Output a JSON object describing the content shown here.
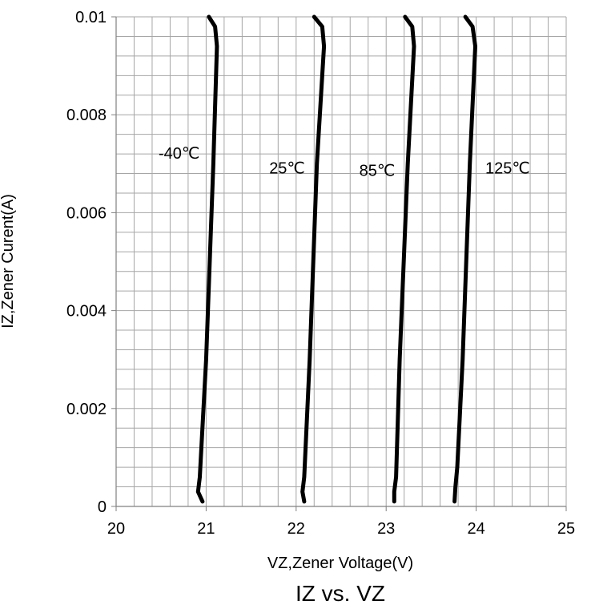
{
  "chart_data": {
    "type": "line",
    "title": "",
    "xlabel": "VZ,Zener Voltage(V)",
    "ylabel": "IZ,Zener Curent(A)",
    "caption": "IZ vs. VZ",
    "xlim": [
      20,
      25
    ],
    "ylim": [
      0,
      0.01
    ],
    "x_ticks": [
      "20",
      "21",
      "22",
      "23",
      "24",
      "25"
    ],
    "y_ticks": [
      "0",
      "0.002",
      "0.004",
      "0.006",
      "0.008",
      "0.01"
    ],
    "grid": true,
    "grid_minor_x_step": 0.2,
    "grid_minor_y_step": 0.0004,
    "series": [
      {
        "name": "-40℃",
        "points": [
          [
            20.96,
            0.0001
          ],
          [
            20.91,
            0.0003
          ],
          [
            20.93,
            0.0006
          ],
          [
            21.0,
            0.003
          ],
          [
            21.08,
            0.007
          ],
          [
            21.12,
            0.0094
          ],
          [
            21.1,
            0.0098
          ],
          [
            21.03,
            0.01
          ]
        ]
      },
      {
        "name": "25℃",
        "points": [
          [
            22.09,
            0.0001
          ],
          [
            22.07,
            0.0003
          ],
          [
            22.09,
            0.0006
          ],
          [
            22.15,
            0.003
          ],
          [
            22.23,
            0.007
          ],
          [
            22.31,
            0.0094
          ],
          [
            22.29,
            0.0098
          ],
          [
            22.2,
            0.01
          ]
        ]
      },
      {
        "name": "85℃",
        "points": [
          [
            23.09,
            0.0001
          ],
          [
            23.09,
            0.0003
          ],
          [
            23.11,
            0.0006
          ],
          [
            23.15,
            0.003
          ],
          [
            23.24,
            0.007
          ],
          [
            23.31,
            0.0094
          ],
          [
            23.29,
            0.0098
          ],
          [
            23.21,
            0.01
          ]
        ]
      },
      {
        "name": "125℃",
        "points": [
          [
            23.76,
            0.0001
          ],
          [
            23.77,
            0.0004
          ],
          [
            23.79,
            0.0008
          ],
          [
            23.85,
            0.003
          ],
          [
            23.93,
            0.007
          ],
          [
            23.99,
            0.0094
          ],
          [
            23.96,
            0.0098
          ],
          [
            23.88,
            0.01
          ]
        ]
      }
    ],
    "series_label_anchors": [
      {
        "text": "-40℃",
        "x": 20.7,
        "y": 0.0071
      },
      {
        "text": "25℃",
        "x": 21.9,
        "y": 0.0068
      },
      {
        "text": "85℃",
        "x": 22.9,
        "y": 0.00675
      },
      {
        "text": "125℃",
        "x": 24.35,
        "y": 0.0068
      }
    ],
    "colors": {
      "line": "#000000",
      "grid": "#a6a6a6",
      "axis": "#808080"
    }
  }
}
